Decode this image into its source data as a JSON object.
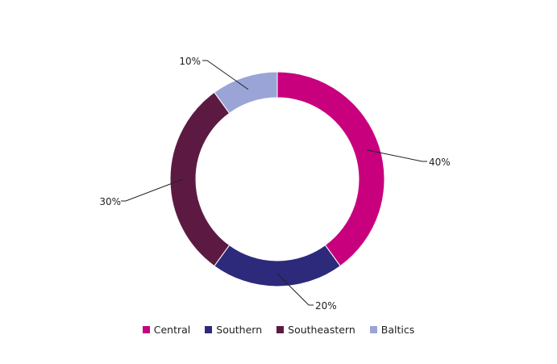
{
  "chart_data": {
    "type": "pie",
    "variant": "donut",
    "title": "",
    "categories": [
      "Central",
      "Southern",
      "Southeastern",
      "Baltics"
    ],
    "values": [
      40,
      20,
      30,
      10
    ],
    "labels": [
      "40%",
      "20%",
      "30%",
      "10%"
    ],
    "colors": [
      "#c8007e",
      "#2d2a7c",
      "#5c1a42",
      "#9aa4d6"
    ],
    "legend_position": "bottom"
  }
}
